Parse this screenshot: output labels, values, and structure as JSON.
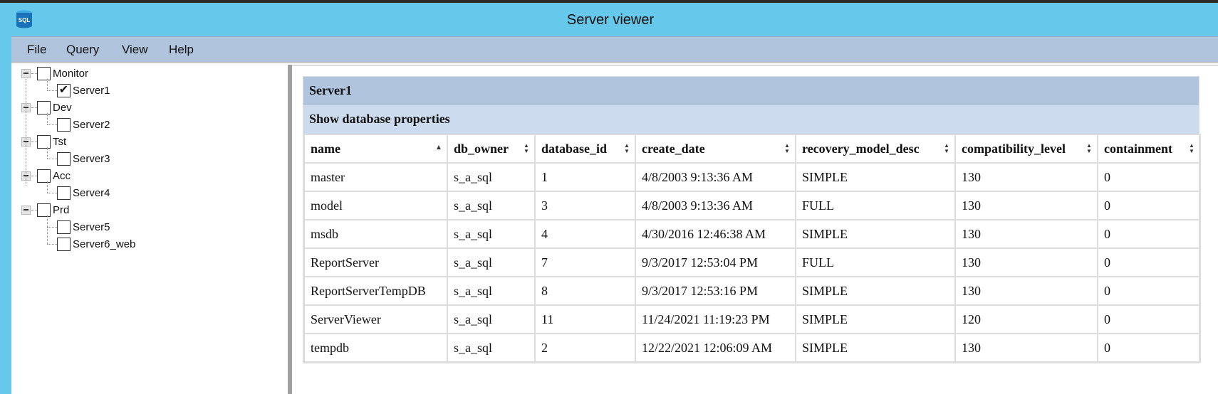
{
  "window": {
    "title": "Server viewer",
    "icon": "sql-database-icon",
    "icon_text": "SQL"
  },
  "menu": [
    "File",
    "Query",
    "View",
    "Help"
  ],
  "tree": [
    {
      "label": "Monitor",
      "checked": false,
      "children": [
        {
          "label": "Server1",
          "checked": true
        }
      ]
    },
    {
      "label": "Dev",
      "checked": false,
      "children": [
        {
          "label": "Server2",
          "checked": false
        }
      ]
    },
    {
      "label": "Tst",
      "checked": false,
      "children": [
        {
          "label": "Server3",
          "checked": false
        }
      ]
    },
    {
      "label": "Acc",
      "checked": false,
      "children": [
        {
          "label": "Server4",
          "checked": false
        }
      ]
    },
    {
      "label": "Prd",
      "checked": false,
      "children": [
        {
          "label": "Server5",
          "checked": false
        },
        {
          "label": "Server6_web",
          "checked": false
        }
      ]
    }
  ],
  "grid": {
    "server": "Server1",
    "subtitle": "Show database properties",
    "columns": [
      {
        "label": "name",
        "sort": "asc"
      },
      {
        "label": "db_owner",
        "sort": "none"
      },
      {
        "label": "database_id",
        "sort": "none"
      },
      {
        "label": "create_date",
        "sort": "none"
      },
      {
        "label": "recovery_model_desc",
        "sort": "none"
      },
      {
        "label": "compatibility_level",
        "sort": "none"
      },
      {
        "label": "containment",
        "sort": "none"
      }
    ],
    "rows": [
      [
        "master",
        "s_a_sql",
        "1",
        "4/8/2003 9:13:36 AM",
        "SIMPLE",
        "130",
        "0"
      ],
      [
        "model",
        "s_a_sql",
        "3",
        "4/8/2003 9:13:36 AM",
        "FULL",
        "130",
        "0"
      ],
      [
        "msdb",
        "s_a_sql",
        "4",
        "4/30/2016 12:46:38 AM",
        "SIMPLE",
        "130",
        "0"
      ],
      [
        "ReportServer",
        "s_a_sql",
        "7",
        "9/3/2017 12:53:04 PM",
        "FULL",
        "130",
        "0"
      ],
      [
        "ReportServerTempDB",
        "s_a_sql",
        "8",
        "9/3/2017 12:53:16 PM",
        "SIMPLE",
        "130",
        "0"
      ],
      [
        "ServerViewer",
        "s_a_sql",
        "11",
        "11/24/2021 11:19:23 PM",
        "SIMPLE",
        "120",
        "0"
      ],
      [
        "tempdb",
        "s_a_sql",
        "2",
        "12/22/2021 12:06:09 AM",
        "SIMPLE",
        "130",
        "0"
      ]
    ]
  },
  "colors": {
    "titlebar": "#66c8ea",
    "menubar": "#b0c4de",
    "grid_header": "#b0c4de",
    "grid_subheader": "#cddbee"
  }
}
